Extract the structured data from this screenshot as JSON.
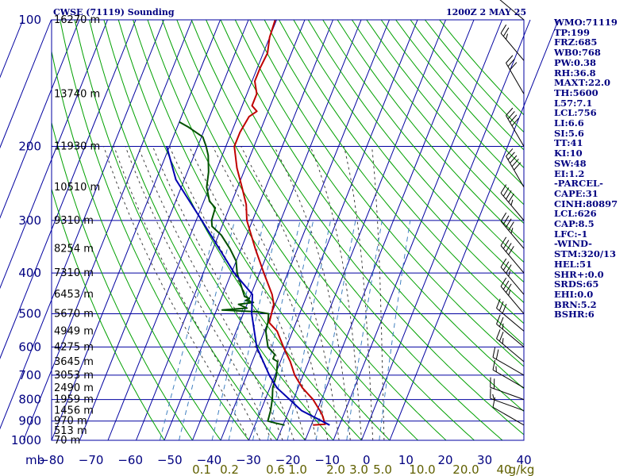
{
  "chart_data": {
    "type": "line",
    "title_left": "CWSE (71119) Sounding",
    "title_right": "1200Z  2 MAY 25",
    "x_axis_unit": "mb",
    "pressure_ticks": [
      100,
      200,
      300,
      400,
      500,
      600,
      700,
      800,
      900,
      1000
    ],
    "temperature_ticks": [
      -80,
      -70,
      -60,
      -50,
      -40,
      -30,
      -20,
      -10,
      0,
      10,
      20,
      30,
      40
    ],
    "mixing_ratio_labels": [
      "0.1",
      "0.2",
      "0.6",
      "1.0",
      "2.0",
      "3.0",
      "5.0",
      "10.0",
      "20.0",
      "40",
      "g/kg"
    ],
    "mixing_ratio_values": [
      0.1,
      0.2,
      0.6,
      1.0,
      2.0,
      3.0,
      5.0,
      10.0,
      20.0,
      40.0
    ],
    "height_labels": [
      {
        "p": 1000,
        "label": "70 m"
      },
      {
        "p": 950,
        "label": "513 m"
      },
      {
        "p": 900,
        "label": "970 m"
      },
      {
        "p": 850,
        "label": "1456 m"
      },
      {
        "p": 800,
        "label": "1959 m"
      },
      {
        "p": 750,
        "label": "2490 m"
      },
      {
        "p": 700,
        "label": "3053 m"
      },
      {
        "p": 650,
        "label": "3645 m"
      },
      {
        "p": 600,
        "label": "4275 m"
      },
      {
        "p": 550,
        "label": "4949 m"
      },
      {
        "p": 500,
        "label": "5670 m"
      },
      {
        "p": 450,
        "label": "6453 m"
      },
      {
        "p": 400,
        "label": "7310 m"
      },
      {
        "p": 350,
        "label": "8254 m"
      },
      {
        "p": 300,
        "label": "9310 m"
      },
      {
        "p": 250,
        "label": "10510 m"
      },
      {
        "p": 200,
        "label": "11930 m"
      },
      {
        "p": 150,
        "label": "13740 m"
      },
      {
        "p": 100,
        "label": "16270 m"
      }
    ],
    "series": [
      {
        "key": "temperature",
        "color": "#c00000",
        "points": [
          [
            920,
            10.6
          ],
          [
            916,
            14.8
          ],
          [
            900,
            14.0
          ],
          [
            870,
            12.4
          ],
          [
            850,
            11.0
          ],
          [
            800,
            7.0
          ],
          [
            750,
            1.5
          ],
          [
            700,
            -3.0
          ],
          [
            650,
            -6.5
          ],
          [
            600,
            -11.0
          ],
          [
            550,
            -15.5
          ],
          [
            525,
            -19.5
          ],
          [
            500,
            -20.0
          ],
          [
            475,
            -20.5
          ],
          [
            450,
            -22.5
          ],
          [
            400,
            -28.5
          ],
          [
            350,
            -35.0
          ],
          [
            300,
            -42.0
          ],
          [
            275,
            -44.5
          ],
          [
            250,
            -48.5
          ],
          [
            225,
            -53.0
          ],
          [
            200,
            -57.0
          ],
          [
            185,
            -57.0
          ],
          [
            170,
            -56.0
          ],
          [
            165,
            -54.0
          ],
          [
            160,
            -56.5
          ],
          [
            150,
            -56.5
          ],
          [
            140,
            -59.0
          ],
          [
            130,
            -59.0
          ],
          [
            120,
            -58.5
          ],
          [
            110,
            -60.0
          ],
          [
            100,
            -60.5
          ]
        ]
      },
      {
        "key": "dewpoint",
        "color": "#005000",
        "points": [
          [
            920,
            0.5
          ],
          [
            910,
            -3.0
          ],
          [
            900,
            -6.0
          ],
          [
            850,
            -6.5
          ],
          [
            800,
            -7.5
          ],
          [
            750,
            -9.0
          ],
          [
            700,
            -9.5
          ],
          [
            650,
            -11.0
          ],
          [
            640,
            -13.0
          ],
          [
            625,
            -13.0
          ],
          [
            600,
            -16.5
          ],
          [
            575,
            -18.0
          ],
          [
            550,
            -19.5
          ],
          [
            525,
            -20.0
          ],
          [
            500,
            -21.0
          ],
          [
            495,
            -25.0
          ],
          [
            490,
            -38.0
          ],
          [
            485,
            -29.5
          ],
          [
            475,
            -33.0
          ],
          [
            470,
            -28.0
          ],
          [
            465,
            -31.0
          ],
          [
            460,
            -30.0
          ],
          [
            455,
            -32.0
          ],
          [
            450,
            -32.5
          ],
          [
            400,
            -38.0
          ],
          [
            375,
            -40.0
          ],
          [
            350,
            -44.0
          ],
          [
            325,
            -49.0
          ],
          [
            310,
            -53.5
          ],
          [
            300,
            -54.5
          ],
          [
            280,
            -55.0
          ],
          [
            270,
            -58.0
          ],
          [
            250,
            -61.0
          ],
          [
            230,
            -62.5
          ],
          [
            210,
            -65.0
          ],
          [
            200,
            -67.0
          ],
          [
            190,
            -69.5
          ],
          [
            180,
            -76.0
          ],
          [
            175,
            -80.0
          ]
        ]
      },
      {
        "key": "parcel",
        "color": "#0000b0",
        "points": [
          [
            920,
            16.5
          ],
          [
            850,
            4.5
          ],
          [
            750,
            -7.5
          ],
          [
            700,
            -12.0
          ],
          [
            600,
            -20.5
          ],
          [
            500,
            -27.0
          ],
          [
            450,
            -29.5
          ],
          [
            400,
            -39.0
          ],
          [
            300,
            -58.0
          ],
          [
            240,
            -73.0
          ],
          [
            200,
            -81.0
          ]
        ]
      }
    ],
    "wind_barbs": [
      {
        "p": 920,
        "dir": 300,
        "spd": 10
      },
      {
        "p": 850,
        "dir": 290,
        "spd": 15
      },
      {
        "p": 800,
        "dir": 290,
        "spd": 20
      },
      {
        "p": 750,
        "dir": 300,
        "spd": 15
      },
      {
        "p": 700,
        "dir": 300,
        "spd": 20
      },
      {
        "p": 650,
        "dir": 310,
        "spd": 25
      },
      {
        "p": 600,
        "dir": 310,
        "spd": 25
      },
      {
        "p": 550,
        "dir": 310,
        "spd": 30
      },
      {
        "p": 500,
        "dir": 320,
        "spd": 35
      },
      {
        "p": 450,
        "dir": 320,
        "spd": 35
      },
      {
        "p": 400,
        "dir": 320,
        "spd": 40
      },
      {
        "p": 350,
        "dir": 320,
        "spd": 45
      },
      {
        "p": 300,
        "dir": 320,
        "spd": 45
      },
      {
        "p": 250,
        "dir": 330,
        "spd": 50
      },
      {
        "p": 200,
        "dir": 330,
        "spd": 40
      },
      {
        "p": 150,
        "dir": 330,
        "spd": 30
      },
      {
        "p": 125,
        "dir": 320,
        "spd": 25
      },
      {
        "p": 100,
        "dir": 310,
        "spd": 20
      }
    ],
    "colors": {
      "grid": "#0000a0",
      "dry_adiabat": "#00a000",
      "moist_adiabat": "#404040",
      "mixing_ratio": "#4080c0",
      "mixing_label": "#606000",
      "axis_text": "#000080"
    }
  },
  "indices": [
    "WMO:71119",
    "TP:199",
    "FRZ:685",
    "WB0:768",
    "PW:0.38",
    "RH:36.8",
    "MAXT:22.0",
    "TH:5600",
    "L57:7.1",
    "LCL:756",
    "LI:6.6",
    "SI:5.6",
    "TT:41",
    "KI:10",
    "SW:48",
    "EI:1.2",
    "-PARCEL-",
    "CAPE:31",
    "CINH:80897",
    "LCL:626",
    "CAP:8.5",
    "LFC:-1",
    "-WIND-",
    "STM:320/13",
    "HEL:51",
    "SHR+:0.0",
    "SRDS:65",
    "EHI:0.0",
    "BRN:5.2",
    "BSHR:6"
  ]
}
